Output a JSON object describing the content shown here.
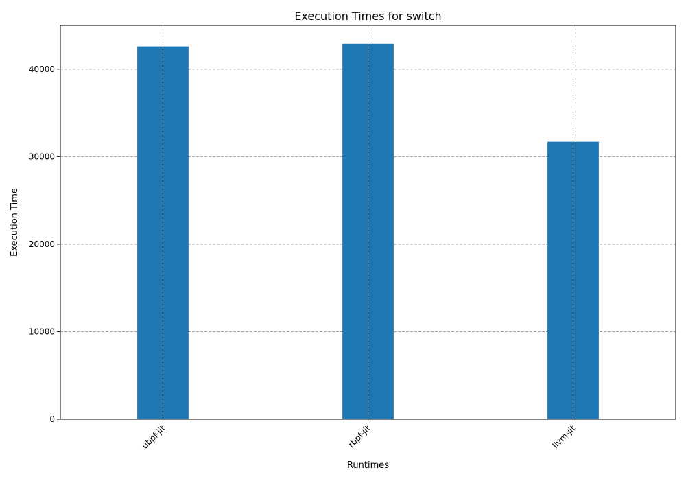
{
  "chart_data": {
    "type": "bar",
    "title": "Execution Times for switch",
    "xlabel": "Runtimes",
    "ylabel": "Execution Time",
    "categories": [
      "ubpf-jit",
      "rbpf-jit",
      "llvm-jit"
    ],
    "values": [
      42600,
      42900,
      31700
    ],
    "ylim": [
      0,
      45000
    ],
    "yticks": [
      0,
      10000,
      20000,
      30000,
      40000
    ],
    "ytick_labels": [
      "0",
      "10000",
      "20000",
      "30000",
      "40000"
    ],
    "grid": true,
    "grid_style": "dashed",
    "bar_color": "#1f77b4",
    "xtick_rotation": "45 degrees"
  }
}
